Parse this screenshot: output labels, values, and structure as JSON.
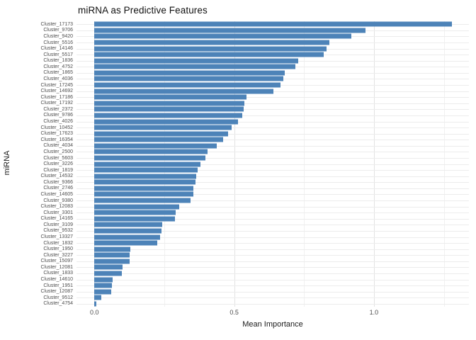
{
  "title": "miRNA as Predictive Features",
  "chart_data": {
    "type": "bar",
    "orientation": "horizontal",
    "title": "miRNA as Predictive Features",
    "xlabel": "Mean Importance",
    "ylabel": "miRNA",
    "xlim": [
      0,
      1.33
    ],
    "x_ticks": [
      0.0,
      0.5,
      1.0
    ],
    "x_tick_labels": [
      "0.0",
      "0.5",
      "1.0"
    ],
    "x_minor_gridlines": [
      0.25,
      0.75,
      1.25
    ],
    "grid": true,
    "legend_position": "none",
    "bar_color": "#4d83b8",
    "categories": [
      "Cluster_17173",
      "Cluster_9706",
      "Cluster_9420",
      "Cluster_5516",
      "Cluster_14146",
      "Cluster_5517",
      "Cluster_1836",
      "Cluster_4752",
      "Cluster_1865",
      "Cluster_4036",
      "Cluster_17245",
      "Cluster_14692",
      "Cluster_17186",
      "Cluster_17192",
      "Cluster_2372",
      "Cluster_9786",
      "Cluster_4026",
      "Cluster_10452",
      "Cluster_17623",
      "Cluster_16354",
      "Cluster_4034",
      "Cluster_2500",
      "Cluster_5603",
      "Cluster_3226",
      "Cluster_1819",
      "Cluster_14532",
      "Cluster_9366",
      "Cluster_2746",
      "Cluster_14605",
      "Cluster_9380",
      "Cluster_12083",
      "Cluster_3301",
      "Cluster_14165",
      "Cluster_3109",
      "Cluster_9532",
      "Cluster_13327",
      "Cluster_1832",
      "Cluster_1950",
      "Cluster_3227",
      "Cluster_15097",
      "Cluster_12081",
      "Cluster_1833",
      "Cluster_14610",
      "Cluster_1951",
      "Cluster_12087",
      "Cluster_9512",
      "Cluster_4754"
    ],
    "values": [
      1.28,
      0.97,
      0.92,
      0.84,
      0.83,
      0.82,
      0.73,
      0.72,
      0.68,
      0.675,
      0.665,
      0.64,
      0.545,
      0.537,
      0.533,
      0.528,
      0.514,
      0.49,
      0.479,
      0.46,
      0.438,
      0.404,
      0.397,
      0.379,
      0.37,
      0.363,
      0.362,
      0.355,
      0.353,
      0.345,
      0.303,
      0.291,
      0.289,
      0.243,
      0.239,
      0.234,
      0.224,
      0.128,
      0.127,
      0.126,
      0.101,
      0.097,
      0.066,
      0.062,
      0.061,
      0.025,
      0.006
    ]
  },
  "colors": {
    "bar": "#4d83b8",
    "grid_major": "#e3e3e3",
    "grid_minor": "#f1f1f1",
    "grid_row": "#ececec",
    "text_primary": "#111111",
    "text_axis": "#4d4d4d",
    "background": "#ffffff"
  }
}
